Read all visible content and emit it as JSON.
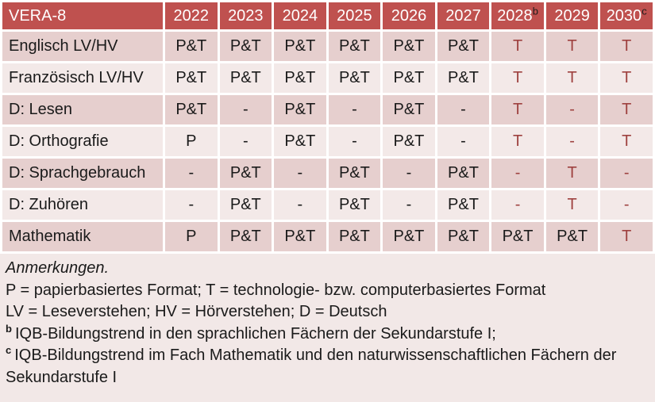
{
  "table": {
    "title": "VERA-8",
    "columns": [
      {
        "label": "2022",
        "sup": ""
      },
      {
        "label": "2023",
        "sup": ""
      },
      {
        "label": "2024",
        "sup": ""
      },
      {
        "label": "2025",
        "sup": ""
      },
      {
        "label": "2026",
        "sup": ""
      },
      {
        "label": "2027",
        "sup": ""
      },
      {
        "label": "2028",
        "sup": "b"
      },
      {
        "label": "2029",
        "sup": ""
      },
      {
        "label": "2030",
        "sup": "c"
      }
    ],
    "rows": [
      {
        "label": "Englisch LV/HV",
        "cells": [
          {
            "v": "P&T",
            "red": false
          },
          {
            "v": "P&T",
            "red": false
          },
          {
            "v": "P&T",
            "red": false
          },
          {
            "v": "P&T",
            "red": false
          },
          {
            "v": "P&T",
            "red": false
          },
          {
            "v": "P&T",
            "red": false
          },
          {
            "v": "T",
            "red": true
          },
          {
            "v": "T",
            "red": true
          },
          {
            "v": "T",
            "red": true
          }
        ]
      },
      {
        "label": "Französisch LV/HV",
        "cells": [
          {
            "v": "P&T",
            "red": false
          },
          {
            "v": "P&T",
            "red": false
          },
          {
            "v": "P&T",
            "red": false
          },
          {
            "v": "P&T",
            "red": false
          },
          {
            "v": "P&T",
            "red": false
          },
          {
            "v": "P&T",
            "red": false
          },
          {
            "v": "T",
            "red": true
          },
          {
            "v": "T",
            "red": true
          },
          {
            "v": "T",
            "red": true
          }
        ]
      },
      {
        "label": "D: Lesen",
        "cells": [
          {
            "v": "P&T",
            "red": false
          },
          {
            "v": "-",
            "red": false
          },
          {
            "v": "P&T",
            "red": false
          },
          {
            "v": "-",
            "red": false
          },
          {
            "v": "P&T",
            "red": false
          },
          {
            "v": "-",
            "red": false
          },
          {
            "v": "T",
            "red": true
          },
          {
            "v": "-",
            "red": true
          },
          {
            "v": "T",
            "red": true
          }
        ]
      },
      {
        "label": "D: Orthografie",
        "cells": [
          {
            "v": "P",
            "red": false
          },
          {
            "v": "-",
            "red": false
          },
          {
            "v": "P&T",
            "red": false
          },
          {
            "v": "-",
            "red": false
          },
          {
            "v": "P&T",
            "red": false
          },
          {
            "v": "-",
            "red": false
          },
          {
            "v": "T",
            "red": true
          },
          {
            "v": "-",
            "red": true
          },
          {
            "v": "T",
            "red": true
          }
        ]
      },
      {
        "label": "D: Sprachgebrauch",
        "cells": [
          {
            "v": "-",
            "red": false
          },
          {
            "v": "P&T",
            "red": false
          },
          {
            "v": "-",
            "red": false
          },
          {
            "v": "P&T",
            "red": false
          },
          {
            "v": "-",
            "red": false
          },
          {
            "v": "P&T",
            "red": false
          },
          {
            "v": "-",
            "red": true
          },
          {
            "v": "T",
            "red": true
          },
          {
            "v": "-",
            "red": true
          }
        ]
      },
      {
        "label": "D: Zuhören",
        "cells": [
          {
            "v": "-",
            "red": false
          },
          {
            "v": "P&T",
            "red": false
          },
          {
            "v": "-",
            "red": false
          },
          {
            "v": "P&T",
            "red": false
          },
          {
            "v": "-",
            "red": false
          },
          {
            "v": "P&T",
            "red": false
          },
          {
            "v": "-",
            "red": true
          },
          {
            "v": "T",
            "red": true
          },
          {
            "v": "-",
            "red": true
          }
        ]
      },
      {
        "label": "Mathematik",
        "cells": [
          {
            "v": "P",
            "red": false
          },
          {
            "v": "P&T",
            "red": false
          },
          {
            "v": "P&T",
            "red": false
          },
          {
            "v": "P&T",
            "red": false
          },
          {
            "v": "P&T",
            "red": false
          },
          {
            "v": "P&T",
            "red": false
          },
          {
            "v": "P&T",
            "red": false
          },
          {
            "v": "P&T",
            "red": false
          },
          {
            "v": "T",
            "red": true
          }
        ]
      }
    ]
  },
  "notes": {
    "heading": "Anmerkungen.",
    "lines": [
      "P = papierbasiertes Format; T = technologie- bzw. computerbasiertes Format",
      "LV = Leseverstehen; HV = Hörverstehen; D = Deutsch"
    ],
    "footnotes": [
      {
        "sup": "b",
        "text": "IQB-Bildungstrend in den sprachlichen Fächern der Sekundarstufe I;"
      },
      {
        "sup": "c",
        "text": "IQB-Bildungstrend im Fach Mathematik und den naturwissenschaftlichen Fächern der Sekundarstufe I"
      }
    ]
  },
  "colors": {
    "page_bg": "#FFFFFF",
    "header_bg": "#BF514F",
    "header_text": "#FFFFFF",
    "header_sup": "#1A1A1A",
    "band_dark": "#E6CFCE",
    "band_light": "#F3E9E8",
    "notes_bg": "#F2E8E7",
    "tech_red": "#9E413F",
    "text": "#1A1A1A"
  }
}
